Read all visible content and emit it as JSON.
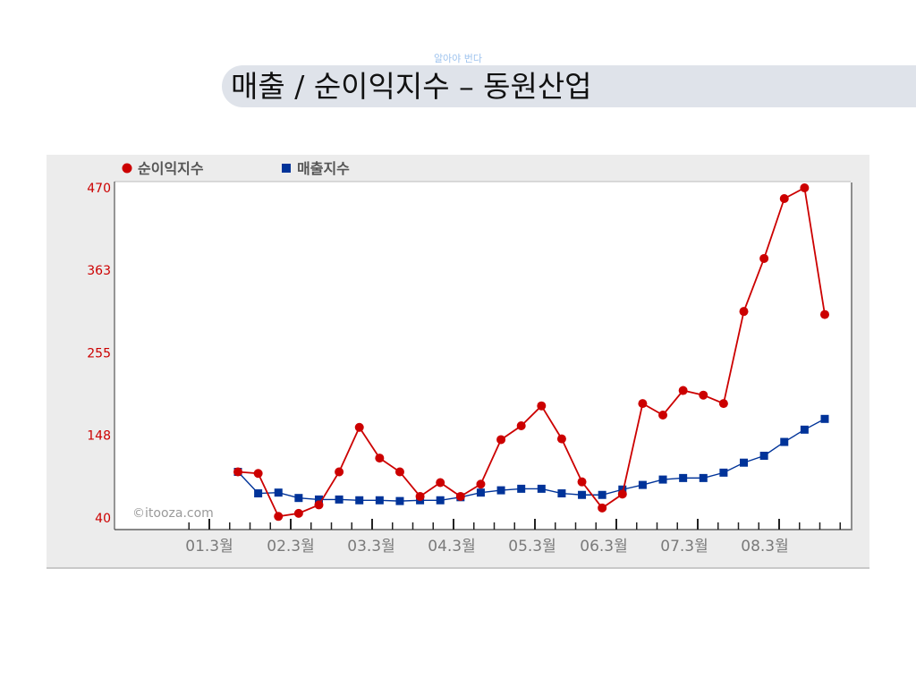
{
  "header": {
    "subtitle": "알아야 번다",
    "title": "매출 / 순이익지수 – 동원산업"
  },
  "chart_data": {
    "type": "line",
    "title": "",
    "xlabel": "",
    "ylabel": "",
    "ylim": [
      40,
      470
    ],
    "y_ticks": [
      "40",
      "148",
      "255",
      "363",
      "470"
    ],
    "x_tick_labels": [
      "01.3월",
      "02.3월",
      "03.3월",
      "04.3월",
      "05.3월",
      "06.3월",
      "07.3월",
      "08.3월"
    ],
    "watermark": "©itooza.com",
    "legend_position": "top-left",
    "x_index": [
      1,
      2,
      3,
      4,
      5,
      6,
      7,
      8,
      9,
      10,
      11,
      12,
      13,
      14,
      15,
      16,
      17,
      18,
      19,
      20,
      21,
      22,
      23,
      24,
      25,
      26,
      27,
      28,
      29,
      30
    ],
    "series": [
      {
        "name": "순이익지수",
        "color": "#cc0000",
        "marker": "circle",
        "values": [
          100,
          98,
          42,
          46,
          57,
          100,
          158,
          118,
          100,
          68,
          86,
          68,
          84,
          142,
          160,
          186,
          143,
          87,
          53,
          71,
          189,
          174,
          206,
          200,
          189,
          309,
          378,
          456,
          470,
          305
        ]
      },
      {
        "name": "매출지수",
        "color": "#003399",
        "marker": "square",
        "values": [
          100,
          72,
          73,
          66,
          64,
          64,
          63,
          63,
          62,
          63,
          63,
          67,
          73,
          76,
          78,
          78,
          72,
          70,
          70,
          77,
          83,
          90,
          92,
          92,
          99,
          112,
          121,
          139,
          155,
          169
        ]
      }
    ]
  }
}
